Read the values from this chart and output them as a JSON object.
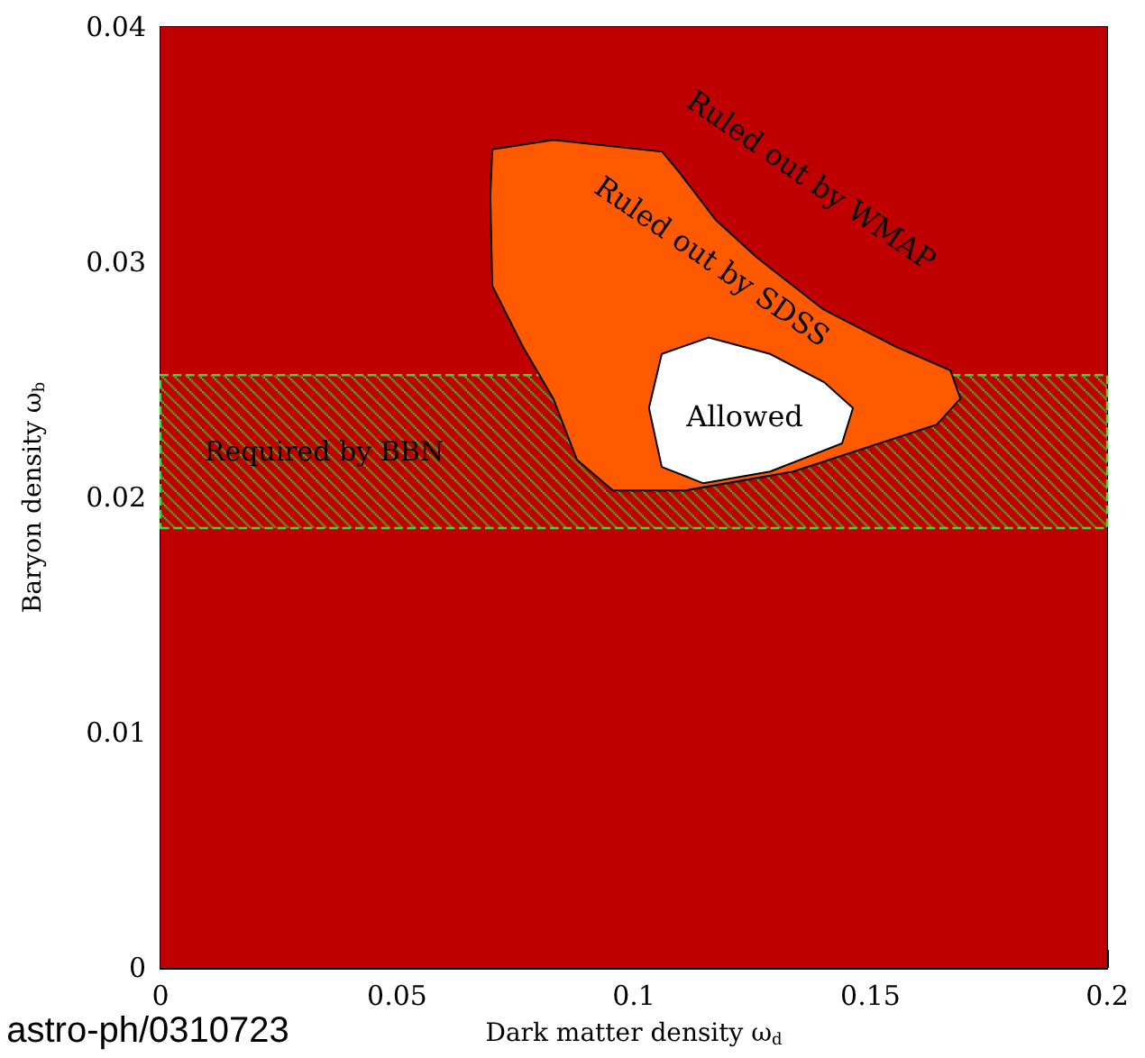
{
  "chart_data": {
    "type": "area",
    "xlabel": "Dark matter density ω$_{d}$",
    "ylabel": "Baryon density ω$_{b}$",
    "xlim": [
      0,
      0.2
    ],
    "xticks": [
      0,
      0.05,
      0.1,
      0.15,
      0.2
    ],
    "ylim": [
      0,
      0.04
    ],
    "yticks": [
      0,
      0.01,
      0.02,
      0.03,
      0.04
    ],
    "grid": false,
    "bands": [
      {
        "axis": "y",
        "from": 0,
        "to": 0.04,
        "color": "#c00000"
      },
      {
        "axis": "y",
        "from": 0.0187,
        "to": 0.0252,
        "label": "Required by BBN",
        "color": "#33dd33"
      }
    ],
    "series": [
      {
        "color": "#ff5a00",
        "x": [
          0.0701,
          0.083,
          0.106,
          0.1097,
          0.1173,
          0.126,
          0.14,
          0.1554,
          0.1669,
          0.169,
          0.164,
          0.1337,
          0.1109,
          0.0956,
          0.088,
          0.083,
          0.0766,
          0.0701,
          0.0697
        ],
        "values": [
          0.0348,
          0.0352,
          0.0347,
          0.0338,
          0.0318,
          0.0302,
          0.028,
          0.0264,
          0.0254,
          0.0242,
          0.0231,
          0.0211,
          0.0203,
          0.0203,
          0.0216,
          0.0242,
          0.0264,
          0.029,
          0.0328
        ]
      },
      {
        "color": "#ffffff",
        "x": [
          0.1059,
          0.1158,
          0.1288,
          0.1402,
          0.1463,
          0.144,
          0.1288,
          0.1147,
          0.1059,
          0.1032
        ],
        "values": [
          0.0261,
          0.0268,
          0.0261,
          0.0249,
          0.0238,
          0.0223,
          0.0211,
          0.0206,
          0.0213,
          0.0238
        ]
      }
    ],
    "annotations": [
      "Ruled out by WMAP",
      "Ruled out by SDSS",
      "Allowed",
      "astro-ph/0310723"
    ]
  }
}
